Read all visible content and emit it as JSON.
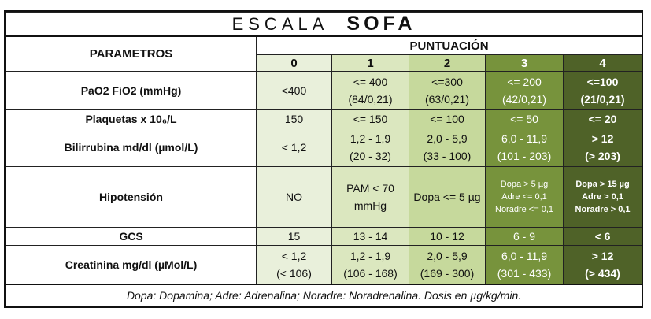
{
  "title": {
    "prefix": "ESCALA",
    "main": "SOFA"
  },
  "header": {
    "parameters": "PARAMETROS",
    "score": "PUNTUACIÓN",
    "scores": [
      "0",
      "1",
      "2",
      "3",
      "4"
    ]
  },
  "rows": [
    {
      "name": "PaO2 FiO2 (mmHg)",
      "cells": [
        [
          "<400"
        ],
        [
          "<= 400",
          "(84/0,21)"
        ],
        [
          "<=300",
          "(63/0,21)"
        ],
        [
          "<= 200",
          "(42/0,21)"
        ],
        [
          "<=100",
          "(21/0,21)"
        ]
      ]
    },
    {
      "name": "Plaquetas x 10₆/L",
      "cells": [
        [
          "150"
        ],
        [
          "<= 150"
        ],
        [
          "<= 100"
        ],
        [
          "<= 50"
        ],
        [
          "<= 20"
        ]
      ]
    },
    {
      "name": "Bilirrubina md/dl (µmol/L)",
      "cells": [
        [
          "< 1,2"
        ],
        [
          "1,2 - 1,9",
          "(20 - 32)"
        ],
        [
          "2,0 - 5,9",
          "(33 - 100)"
        ],
        [
          "6,0 - 11,9",
          "(101 - 203)"
        ],
        [
          "> 12",
          "(> 203)"
        ]
      ]
    },
    {
      "name": "Hipotensión",
      "cells": [
        [
          "NO"
        ],
        [
          "PAM < 70",
          "mmHg"
        ],
        [
          "Dopa <= 5 µg"
        ],
        [
          "Dopa > 5 µg",
          "Adre <= 0,1",
          "Noradre <= 0,1"
        ],
        [
          "Dopa > 15 µg",
          "Adre > 0,1",
          "Noradre > 0,1"
        ]
      ]
    },
    {
      "name": "GCS",
      "cells": [
        [
          "15"
        ],
        [
          "13 - 14"
        ],
        [
          "10 - 12"
        ],
        [
          "6 - 9"
        ],
        [
          "< 6"
        ]
      ]
    },
    {
      "name": "Creatinina mg/dl (µMol/L)",
      "cells": [
        [
          "< 1,2",
          "(< 106)"
        ],
        [
          "1,2 - 1,9",
          "(106 - 168)"
        ],
        [
          "2,0 - 5,9",
          "(169 - 300)"
        ],
        [
          "6,0 - 11,9",
          "(301 - 433)"
        ],
        [
          "> 12",
          "(> 434)"
        ]
      ]
    }
  ],
  "footer": "Dopa: Dopamina; Adre: Adrenalina; Noradre: Noradrenalina. Dosis en µg/kg/min.",
  "colors": {
    "score0": "#e9f0db",
    "score1": "#dbe7bf",
    "score2": "#c6d99c",
    "score3": "#77933c",
    "score4": "#4f6228"
  }
}
